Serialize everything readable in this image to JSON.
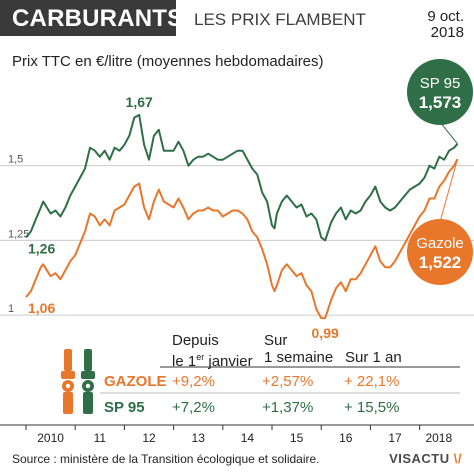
{
  "header": {
    "title": "CARBURANTS",
    "subtitle": "LES PRIX FLAMBENT",
    "date_line1": "9 oct.",
    "date_line2": "2018"
  },
  "footer": {
    "source": "Source : ministère de la Transition écologique et solidaire.",
    "logo_main": "VISACTU",
    "logo_accent": "\\/"
  },
  "colors": {
    "gazole": "#e8762b",
    "sp95": "#2f6e47",
    "header_bg": "#3a3a3a",
    "gridline": "#cccccc"
  },
  "table": {
    "headers": {
      "col1_line1": "Depuis",
      "col1_line2_pre": "le 1",
      "col1_line2_sup": "er",
      "col1_line2_post": " janvier",
      "col2_line1": "Sur",
      "col2_line2": "1 semaine",
      "col3": "Sur 1 an"
    },
    "rows": [
      {
        "label": "GAZOLE",
        "since_jan": "+9,2%",
        "week": "+2,57%",
        "year": "+ 22,1%"
      },
      {
        "label": "SP 95",
        "since_jan": "+7,2%",
        "week": "+1,37%",
        "year": "+ 15,5%"
      }
    ]
  },
  "chart_data": {
    "type": "line",
    "title": "CARBURANTS",
    "ylabel": "Prix TTC en €/litre (moyennes hebdomadaires)",
    "xlim": [
      2010,
      2018.78
    ],
    "ylim": [
      0.93,
      1.8
    ],
    "grid": true,
    "y_ticks": [
      {
        "value": 1.0,
        "label": "1"
      },
      {
        "value": 1.25,
        "label": "1,25"
      },
      {
        "value": 1.5,
        "label": "1,5"
      }
    ],
    "x_ticks": [
      {
        "value": 2010,
        "label": "2010"
      },
      {
        "value": 2011,
        "label": "11"
      },
      {
        "value": 2012,
        "label": "12"
      },
      {
        "value": 2013,
        "label": "13"
      },
      {
        "value": 2014,
        "label": "14"
      },
      {
        "value": 2015,
        "label": "15"
      },
      {
        "value": 2016,
        "label": "16"
      },
      {
        "value": 2017,
        "label": "17"
      },
      {
        "value": 2018,
        "label": "2018"
      }
    ],
    "series": [
      {
        "name": "SP 95",
        "x": [
          2010.0,
          2010.1,
          2010.2,
          2010.3,
          2010.35,
          2010.5,
          2010.6,
          2010.7,
          2010.8,
          2010.9,
          2011.0,
          2011.1,
          2011.2,
          2011.3,
          2011.4,
          2011.5,
          2011.6,
          2011.7,
          2011.8,
          2011.9,
          2012.0,
          2012.1,
          2012.2,
          2012.3,
          2012.4,
          2012.5,
          2012.6,
          2012.7,
          2012.8,
          2012.9,
          2013.0,
          2013.1,
          2013.2,
          2013.3,
          2013.4,
          2013.5,
          2013.6,
          2013.7,
          2013.8,
          2013.9,
          2014.0,
          2014.1,
          2014.2,
          2014.3,
          2014.4,
          2014.5,
          2014.6,
          2014.7,
          2014.8,
          2014.9,
          2015.0,
          2015.05,
          2015.1,
          2015.2,
          2015.3,
          2015.4,
          2015.5,
          2015.6,
          2015.7,
          2015.8,
          2015.9,
          2016.0,
          2016.08,
          2016.2,
          2016.3,
          2016.4,
          2016.5,
          2016.6,
          2016.7,
          2016.8,
          2016.9,
          2017.0,
          2017.1,
          2017.2,
          2017.3,
          2017.4,
          2017.5,
          2017.6,
          2017.7,
          2017.8,
          2017.9,
          2018.0,
          2018.1,
          2018.2,
          2018.3,
          2018.4,
          2018.5,
          2018.6,
          2018.7,
          2018.77
        ],
        "y": [
          1.26,
          1.28,
          1.32,
          1.36,
          1.38,
          1.34,
          1.35,
          1.33,
          1.36,
          1.4,
          1.43,
          1.46,
          1.49,
          1.56,
          1.55,
          1.53,
          1.55,
          1.52,
          1.56,
          1.55,
          1.57,
          1.6,
          1.66,
          1.67,
          1.57,
          1.52,
          1.6,
          1.62,
          1.55,
          1.55,
          1.55,
          1.58,
          1.55,
          1.5,
          1.52,
          1.53,
          1.53,
          1.54,
          1.53,
          1.52,
          1.52,
          1.53,
          1.54,
          1.55,
          1.55,
          1.52,
          1.49,
          1.47,
          1.41,
          1.38,
          1.3,
          1.29,
          1.34,
          1.38,
          1.4,
          1.38,
          1.36,
          1.37,
          1.33,
          1.34,
          1.32,
          1.26,
          1.25,
          1.31,
          1.34,
          1.36,
          1.32,
          1.35,
          1.34,
          1.35,
          1.38,
          1.4,
          1.43,
          1.38,
          1.36,
          1.35,
          1.36,
          1.38,
          1.4,
          1.42,
          1.43,
          1.44,
          1.46,
          1.5,
          1.49,
          1.53,
          1.52,
          1.55,
          1.56,
          1.573
        ]
      },
      {
        "name": "Gazole",
        "x": [
          2010.0,
          2010.1,
          2010.2,
          2010.3,
          2010.35,
          2010.5,
          2010.6,
          2010.7,
          2010.8,
          2010.9,
          2011.0,
          2011.1,
          2011.2,
          2011.3,
          2011.4,
          2011.5,
          2011.6,
          2011.7,
          2011.8,
          2011.9,
          2012.0,
          2012.1,
          2012.2,
          2012.3,
          2012.4,
          2012.5,
          2012.6,
          2012.7,
          2012.8,
          2012.9,
          2013.0,
          2013.1,
          2013.2,
          2013.3,
          2013.4,
          2013.5,
          2013.6,
          2013.7,
          2013.8,
          2013.9,
          2014.0,
          2014.1,
          2014.2,
          2014.3,
          2014.4,
          2014.5,
          2014.6,
          2014.7,
          2014.8,
          2014.9,
          2015.0,
          2015.05,
          2015.1,
          2015.2,
          2015.3,
          2015.4,
          2015.5,
          2015.6,
          2015.7,
          2015.8,
          2015.9,
          2016.0,
          2016.08,
          2016.2,
          2016.3,
          2016.4,
          2016.5,
          2016.6,
          2016.7,
          2016.8,
          2016.9,
          2017.0,
          2017.1,
          2017.2,
          2017.3,
          2017.4,
          2017.5,
          2017.6,
          2017.7,
          2017.8,
          2017.9,
          2018.0,
          2018.1,
          2018.2,
          2018.3,
          2018.4,
          2018.5,
          2018.6,
          2018.7,
          2018.77
        ],
        "y": [
          1.06,
          1.08,
          1.12,
          1.16,
          1.17,
          1.13,
          1.14,
          1.12,
          1.15,
          1.18,
          1.2,
          1.24,
          1.28,
          1.34,
          1.33,
          1.3,
          1.32,
          1.3,
          1.35,
          1.36,
          1.37,
          1.4,
          1.43,
          1.44,
          1.36,
          1.32,
          1.38,
          1.42,
          1.38,
          1.37,
          1.36,
          1.39,
          1.36,
          1.32,
          1.34,
          1.35,
          1.35,
          1.36,
          1.35,
          1.35,
          1.33,
          1.34,
          1.35,
          1.35,
          1.34,
          1.32,
          1.28,
          1.26,
          1.22,
          1.17,
          1.1,
          1.08,
          1.1,
          1.15,
          1.17,
          1.15,
          1.13,
          1.14,
          1.1,
          1.08,
          1.02,
          0.99,
          0.99,
          1.05,
          1.09,
          1.11,
          1.08,
          1.12,
          1.12,
          1.14,
          1.17,
          1.2,
          1.23,
          1.18,
          1.16,
          1.16,
          1.18,
          1.21,
          1.24,
          1.27,
          1.3,
          1.33,
          1.35,
          1.39,
          1.39,
          1.43,
          1.45,
          1.48,
          1.5,
          1.522
        ]
      }
    ],
    "annotations": [
      {
        "text": "1,67",
        "series": "SP 95",
        "x": 2012.3,
        "y": 1.67
      },
      {
        "text": "1,26",
        "series": "SP 95",
        "x": 2010.0,
        "y": 1.26
      },
      {
        "text": "1,06",
        "series": "Gazole",
        "x": 2010.0,
        "y": 1.06
      },
      {
        "text": "0,99",
        "series": "Gazole",
        "x": 2016.08,
        "y": 0.99
      }
    ],
    "callouts": [
      {
        "series": "SP 95",
        "name": "SP 95",
        "value": "1,573"
      },
      {
        "series": "Gazole",
        "name": "Gazole",
        "value": "1,522"
      }
    ]
  }
}
